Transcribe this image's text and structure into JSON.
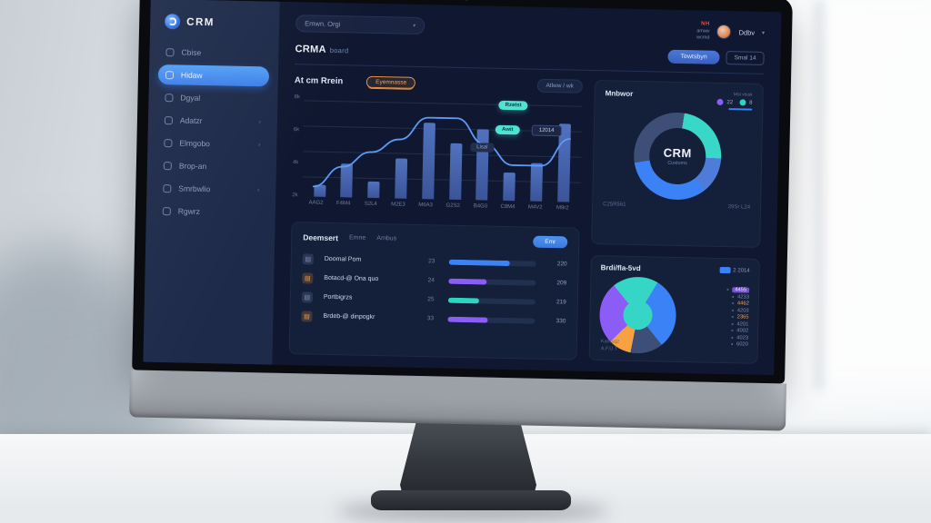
{
  "logo": {
    "text": "CRM"
  },
  "sidebar": {
    "items": [
      {
        "label": "Cbise",
        "active": false,
        "more": false
      },
      {
        "label": "Hidaw",
        "active": true,
        "more": false
      },
      {
        "label": "Dgyal",
        "active": false,
        "more": false
      },
      {
        "label": "Adatzr",
        "active": false,
        "more": true
      },
      {
        "label": "Elmgobo",
        "active": false,
        "more": true
      },
      {
        "label": "Brop-an",
        "active": false,
        "more": false
      },
      {
        "label": "Smrbwlio",
        "active": false,
        "more": true
      },
      {
        "label": "Rgwrz",
        "active": false,
        "more": false
      }
    ]
  },
  "topbar": {
    "search_value": "Emwn. Orgi",
    "alert": "NH",
    "meta_line1": "amwv",
    "meta_line2": "wcmd",
    "user_name": "Ddbv",
    "primary_button": "Tewtsbyn",
    "secondary_button": "Smal 14"
  },
  "page": {
    "title": "CRMA",
    "subtitle": "board"
  },
  "main_chart": {
    "title": "At cm Rrein",
    "badge": "Eyemnasse",
    "range_control": "Atlww / wk",
    "tooltip_peak": "Rzetst",
    "tooltip_point": "Awit",
    "tooltip_value": "12014",
    "tooltip_label": "Lisal"
  },
  "activity_table": {
    "title": "Deemsert",
    "tabs": [
      "Emne",
      "Ambus"
    ],
    "action": "Emr",
    "rows": [
      {
        "name": "Doomal Pom",
        "count": "23",
        "pct": 70,
        "color": "#3b82f6",
        "icon_color": "#8295b8",
        "value": "220"
      },
      {
        "name": "Botacd-@ Ona quo",
        "count": "24",
        "pct": 44,
        "color": "#8b5cf6",
        "icon_color": "#f6a142",
        "value": "209"
      },
      {
        "name": "Portbigrzs",
        "count": "25",
        "pct": 35,
        "color": "#2dd4bf",
        "icon_color": "#8295b8",
        "value": "219"
      },
      {
        "name": "Brdeb-@ dinpogkr",
        "count": "33",
        "pct": 46,
        "color": "#8b5cf6",
        "icon_color": "#f6a142",
        "value": "330"
      }
    ]
  },
  "donut_panel": {
    "title": "Mnbwor",
    "legend_caption": "Mst vtssk",
    "legend": [
      {
        "value": "22",
        "color": "#8b5cf6"
      },
      {
        "value": "8",
        "color": "#2dd4bf"
      }
    ],
    "center_title": "CRM",
    "center_sub": "Customs",
    "footer_left": "C25R561",
    "footer_right": "29Sr L24"
  },
  "pie_panel": {
    "title": "Brdi/fla-5vd",
    "badge": "2 2014",
    "legend": [
      {
        "value": "4455",
        "style": "pill-purple"
      },
      {
        "value": "4233",
        "style": "plain"
      },
      {
        "value": "4462",
        "style": "orange"
      },
      {
        "value": "4203",
        "style": "plain"
      },
      {
        "value": "2365",
        "style": "orange"
      },
      {
        "value": "4201",
        "style": "plain"
      },
      {
        "value": "4002",
        "style": "plain"
      },
      {
        "value": "4023",
        "style": "plain"
      },
      {
        "value": "6020",
        "style": "plain"
      }
    ],
    "footnote1": "Kamsq2",
    "footnote2": "A.F.U.T"
  },
  "chart_data": [
    {
      "type": "bar",
      "title": "At cm Rrein",
      "categories": [
        "AAG2",
        "F4M4",
        "S2L4",
        "M2E3",
        "M6A3",
        "G2S2",
        "B4G0",
        "C8M4",
        "M4V2",
        "M9r2"
      ],
      "ylabels": [
        "8k",
        "6k",
        "4k",
        "2k"
      ],
      "bar_values_pct": [
        12,
        33,
        16,
        39,
        75,
        55,
        70,
        28,
        38,
        77
      ],
      "line_values_pct": [
        10,
        30,
        45,
        58,
        80,
        80,
        55,
        35,
        35,
        62
      ],
      "bar_color": "#41639f",
      "line_color": "#5d9bf7",
      "grid": true,
      "legend_position": "none"
    },
    {
      "type": "pie",
      "variant": "donut",
      "title": "Mnbwor",
      "center_label": "CRM",
      "segments": [
        {
          "color": "#38d7c7",
          "deg": 100
        },
        {
          "color": "#4f7bd9",
          "deg": 48
        },
        {
          "color": "#3b82f6",
          "deg": 120
        },
        {
          "color": "#3d4f76",
          "deg": 92
        }
      ],
      "start_deg": -8
    },
    {
      "type": "pie",
      "title": "Brdi/fla-5vd",
      "segments": [
        {
          "color": "#3b82f6",
          "deg": 110
        },
        {
          "color": "#3d4f76",
          "deg": 50
        },
        {
          "color": "#f6a142",
          "deg": 35
        },
        {
          "color": "#8b5cf6",
          "deg": 95
        },
        {
          "color": "#35d6c5",
          "deg": 70
        }
      ],
      "start_deg": 30
    }
  ]
}
